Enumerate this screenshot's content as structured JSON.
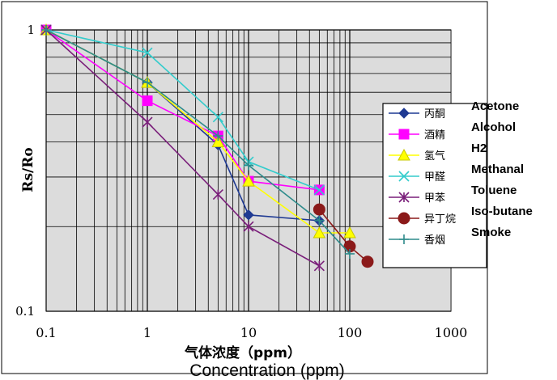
{
  "chart_data": {
    "type": "line",
    "title": "",
    "xlabel": "气体浓度（ppm）",
    "xlabel_translation": "Concentration (ppm)",
    "ylabel": "Rs/Ro",
    "xscale": "log",
    "yscale": "log",
    "xlim": [
      0.1,
      1000
    ],
    "ylim": [
      0.1,
      1
    ],
    "x_tick_labels": [
      "0.1",
      "1",
      "10",
      "100",
      "1000"
    ],
    "x_tick_values": [
      0.1,
      1,
      10,
      100,
      1000
    ],
    "y_tick_labels": [
      "1",
      "0.1"
    ],
    "y_tick_values": [
      1,
      0.1
    ],
    "grid": true,
    "legend_position": "right",
    "series": [
      {
        "name": "丙酮",
        "name_en": "Acetone",
        "color": "#1f3a93",
        "marker": "diamond",
        "x": [
          0.1,
          1,
          5,
          10,
          50
        ],
        "y": [
          1,
          0.65,
          0.39,
          0.22,
          0.21
        ]
      },
      {
        "name": "酒精",
        "name_en": "Alcohol",
        "color": "#ff00ff",
        "marker": "square",
        "x": [
          0.1,
          1,
          5,
          10,
          50
        ],
        "y": [
          1,
          0.56,
          0.42,
          0.29,
          0.27
        ]
      },
      {
        "name": "氢气",
        "name_en": "H2",
        "color": "#ffff00",
        "marker": "triangle",
        "x": [
          0.1,
          1,
          5,
          10,
          50,
          100
        ],
        "y": [
          1,
          0.65,
          0.4,
          0.29,
          0.19,
          0.19
        ]
      },
      {
        "name": "甲醛",
        "name_en": "Methanal",
        "color": "#33cccc",
        "marker": "x",
        "x": [
          0.1,
          1,
          5,
          10,
          50
        ],
        "y": [
          1,
          0.83,
          0.49,
          0.34,
          0.27
        ]
      },
      {
        "name": "甲苯",
        "name_en": "Toluene",
        "color": "#7a1f7a",
        "marker": "star",
        "x": [
          0.1,
          1,
          5,
          10,
          50
        ],
        "y": [
          1,
          0.47,
          0.26,
          0.2,
          0.145
        ]
      },
      {
        "name": "异丁烷",
        "name_en": "Iso-butane",
        "color": "#8b1a1a",
        "marker": "circle",
        "x": [
          50,
          100,
          150
        ],
        "y": [
          0.23,
          0.17,
          0.15
        ]
      },
      {
        "name": "香烟",
        "name_en": "Smoke",
        "color": "#2e8b8b",
        "marker": "plus",
        "x": [
          0.1,
          1,
          5,
          10,
          50,
          100
        ],
        "y": [
          1,
          0.65,
          0.42,
          0.33,
          0.21,
          0.16
        ]
      }
    ]
  }
}
